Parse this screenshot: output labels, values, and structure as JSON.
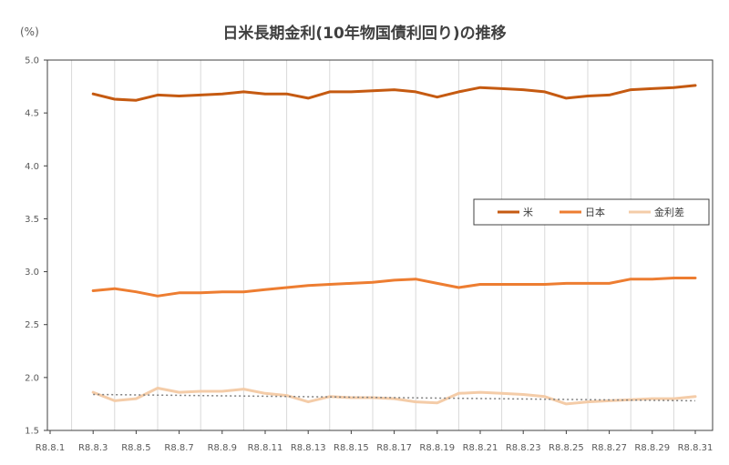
{
  "chart_data": {
    "type": "line",
    "title": "日米長期金利(10年物国債利回り)の推移",
    "y_unit": "(%)",
    "ylim": [
      1.5,
      5.0
    ],
    "y_ticks": [
      "1.5",
      "2.0",
      "2.5",
      "3.0",
      "3.5",
      "4.0",
      "4.5",
      "5.0"
    ],
    "x_tick_labels": [
      "R8.8.1",
      "R8.8.3",
      "R8.8.5",
      "R8.8.7",
      "R8.8.9",
      "R8.8.11",
      "R8.8.13",
      "R8.8.15",
      "R8.8.17",
      "R8.8.19",
      "R8.8.21",
      "R8.8.23",
      "R8.8.25",
      "R8.8.27",
      "R8.8.29",
      "R8.8.31"
    ],
    "x": [
      "R8.8.1",
      "R8.8.2",
      "R8.8.3",
      "R8.8.4",
      "R8.8.5",
      "R8.8.6",
      "R8.8.7",
      "R8.8.8",
      "R8.8.9",
      "R8.8.10",
      "R8.8.11",
      "R8.8.12",
      "R8.8.13",
      "R8.8.14",
      "R8.8.15",
      "R8.8.16",
      "R8.8.17",
      "R8.8.18",
      "R8.8.19",
      "R8.8.20",
      "R8.8.21",
      "R8.8.22",
      "R8.8.23",
      "R8.8.24",
      "R8.8.25",
      "R8.8.26",
      "R8.8.27",
      "R8.8.28",
      "R8.8.29",
      "R8.8.30",
      "R8.8.31"
    ],
    "grid": "vertical",
    "legend_position": "right",
    "series": [
      {
        "name": "米",
        "color": "#c55a11",
        "values": [
          null,
          null,
          4.68,
          4.63,
          4.62,
          4.67,
          4.66,
          4.67,
          4.68,
          4.7,
          4.68,
          4.68,
          4.64,
          4.7,
          4.7,
          4.71,
          4.72,
          4.7,
          4.65,
          4.7,
          4.74,
          4.73,
          4.72,
          4.7,
          4.64,
          4.66,
          4.67,
          4.72,
          4.73,
          4.74,
          4.76
        ]
      },
      {
        "name": "日本",
        "color": "#ed7d31",
        "values": [
          null,
          null,
          2.82,
          2.84,
          2.81,
          2.77,
          2.8,
          2.8,
          2.81,
          2.81,
          2.83,
          2.85,
          2.87,
          2.88,
          2.89,
          2.9,
          2.92,
          2.93,
          2.89,
          2.85,
          2.88,
          2.88,
          2.88,
          2.88,
          2.89,
          2.89,
          2.89,
          2.93,
          2.93,
          2.94,
          2.94
        ]
      },
      {
        "name": "金利差",
        "color": "#f4cca8",
        "values": [
          null,
          null,
          1.86,
          1.78,
          1.8,
          1.9,
          1.86,
          1.87,
          1.87,
          1.89,
          1.85,
          1.83,
          1.77,
          1.82,
          1.81,
          1.81,
          1.8,
          1.77,
          1.76,
          1.85,
          1.86,
          1.85,
          1.84,
          1.82,
          1.75,
          1.77,
          1.78,
          1.79,
          1.8,
          1.8,
          1.82
        ]
      }
    ],
    "trendline": {
      "series": "金利差",
      "style": "dotted",
      "color": "#7f7f7f",
      "from": 1.84,
      "to": 1.78
    }
  }
}
